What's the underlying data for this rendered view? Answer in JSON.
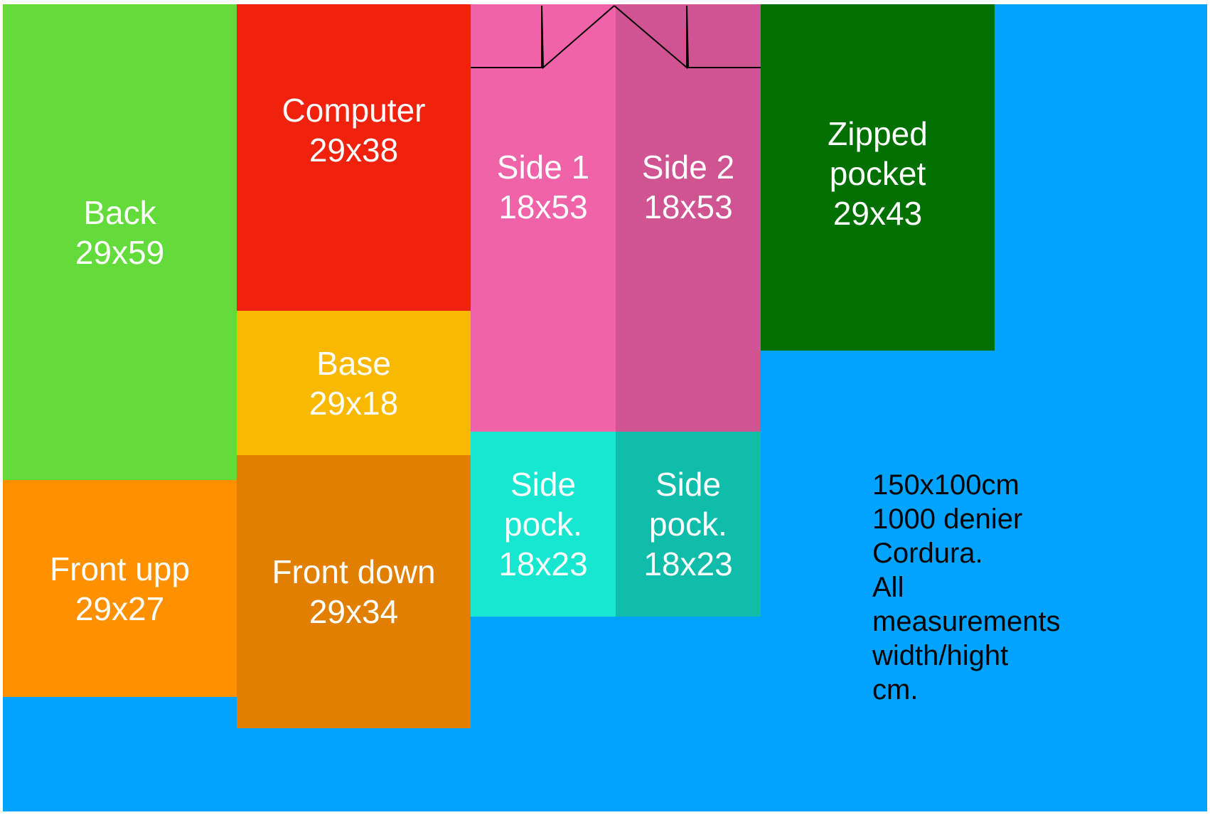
{
  "colors": {
    "fabric": "#00a3ff",
    "back": "#63db3a",
    "front_upp": "#ff9100",
    "computer": "#f0220e",
    "base": "#f9b900",
    "front_down": "#e07f00",
    "side1": "#f063a8",
    "side2": "#d05392",
    "side_pocket_1": "#17e7d0",
    "side_pocket_2": "#10bdaa",
    "zipped_pocket": "#007000"
  },
  "pieces": {
    "back": {
      "label": "Back\n29x59"
    },
    "front_upp": {
      "label": "Front upp\n29x27"
    },
    "computer": {
      "label": "Computer\n29x38"
    },
    "base": {
      "label": "Base\n29x18"
    },
    "front_down": {
      "label": "Front down\n29x34"
    },
    "side1": {
      "label": "Side 1\n18x53"
    },
    "side2": {
      "label": "Side 2\n18x53"
    },
    "side_pocket_1": {
      "label": "Side\npock.\n18x23"
    },
    "side_pocket_2": {
      "label": "Side\npock.\n18x23"
    },
    "zipped_pocket": {
      "label": "Zipped\npocket\n29x43"
    }
  },
  "note": "150x100cm\n1000 denier\nCordura.\nAll\nmeasurements\nwidth/hight\ncm."
}
